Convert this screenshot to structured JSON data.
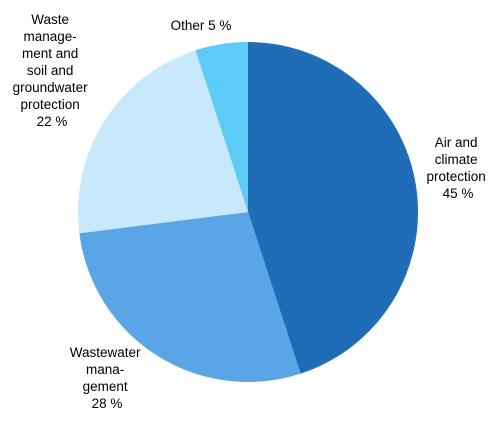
{
  "chart_data": {
    "type": "pie",
    "start": "12 o'clock",
    "direction": "clockwise",
    "slices": [
      {
        "key": "air",
        "lines": [
          "Air and",
          "climate",
          "protection",
          "45 %"
        ],
        "value": 45,
        "color": "#1f6db6"
      },
      {
        "key": "wastewater",
        "lines": [
          "Wastewater",
          "mana-",
          "gement",
          "28 %"
        ],
        "value": 28,
        "color": "#5aa5e6"
      },
      {
        "key": "waste",
        "lines": [
          "Waste",
          "manage-",
          "ment and",
          "soil and",
          "groundwater",
          "protection",
          "22 %"
        ],
        "value": 22,
        "color": "#c8e9fb"
      },
      {
        "key": "other",
        "lines": [
          "Other 5 %"
        ],
        "value": 5,
        "color": "#5ccbf7"
      }
    ]
  }
}
